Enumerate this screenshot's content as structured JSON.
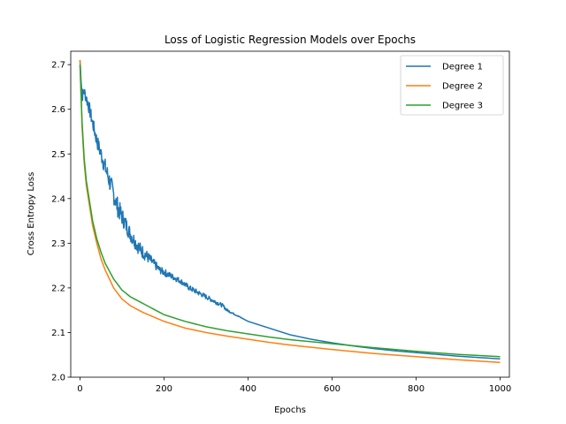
{
  "chart_data": {
    "type": "line",
    "title": "Loss of Logistic Regression Models over Epochs",
    "xlabel": "Epochs",
    "ylabel": "Cross Entropy Loss",
    "xlim": [
      -22,
      1022
    ],
    "ylim": [
      2.0,
      2.73
    ],
    "xticks": [
      0,
      200,
      400,
      600,
      800,
      1000
    ],
    "yticks": [
      2.0,
      2.1,
      2.2,
      2.3,
      2.4,
      2.5,
      2.6,
      2.7
    ],
    "ytick_labels": [
      "2.0",
      "2.1",
      "2.2",
      "2.3",
      "2.4",
      "2.5",
      "2.6",
      "2.7"
    ],
    "grid": false,
    "legend_position": "top-right",
    "series": [
      {
        "name": "Degree 1",
        "color": "#1f77b4",
        "x": [
          0,
          2,
          5,
          10,
          20,
          30,
          40,
          50,
          60,
          70,
          80,
          90,
          100,
          110,
          120,
          130,
          140,
          150,
          160,
          170,
          180,
          190,
          200,
          220,
          240,
          260,
          280,
          300,
          320,
          340,
          350,
          360,
          380,
          400,
          450,
          500,
          550,
          600,
          650,
          700,
          750,
          800,
          850,
          900,
          950,
          1000
        ],
        "values": [
          2.71,
          2.68,
          2.63,
          2.64,
          2.61,
          2.57,
          2.53,
          2.5,
          2.47,
          2.44,
          2.41,
          2.38,
          2.36,
          2.34,
          2.32,
          2.305,
          2.29,
          2.28,
          2.27,
          2.26,
          2.25,
          2.24,
          2.235,
          2.225,
          2.215,
          2.2,
          2.19,
          2.18,
          2.17,
          2.16,
          2.15,
          2.145,
          2.135,
          2.125,
          2.11,
          2.095,
          2.085,
          2.077,
          2.07,
          2.064,
          2.059,
          2.055,
          2.051,
          2.047,
          2.044,
          2.041
        ],
        "noise": [
          0,
          0.01,
          0.015,
          0.012,
          0.015,
          0.015,
          0.016,
          0.018,
          0.02,
          0.022,
          0.022,
          0.022,
          0.02,
          0.018,
          0.017,
          0.016,
          0.016,
          0.015,
          0.013,
          0.011,
          0.01,
          0.008,
          0.008,
          0.007,
          0.006,
          0.006,
          0.006,
          0.005,
          0.005,
          0.004,
          0.003,
          0.002,
          0.001,
          0,
          0,
          0,
          0,
          0,
          0,
          0,
          0,
          0,
          0,
          0,
          0,
          0
        ]
      },
      {
        "name": "Degree 2",
        "color": "#ff7f0e",
        "x": [
          0,
          5,
          10,
          15,
          20,
          30,
          40,
          50,
          60,
          80,
          100,
          120,
          150,
          200,
          250,
          300,
          350,
          400,
          450,
          500,
          600,
          700,
          800,
          900,
          1000
        ],
        "values": [
          2.71,
          2.56,
          2.48,
          2.43,
          2.4,
          2.34,
          2.3,
          2.265,
          2.24,
          2.2,
          2.175,
          2.16,
          2.145,
          2.125,
          2.11,
          2.1,
          2.092,
          2.085,
          2.078,
          2.072,
          2.062,
          2.053,
          2.046,
          2.039,
          2.033
        ]
      },
      {
        "name": "Degree 3",
        "color": "#2ca02c",
        "x": [
          0,
          5,
          10,
          15,
          20,
          30,
          40,
          50,
          60,
          80,
          100,
          120,
          150,
          200,
          250,
          300,
          350,
          400,
          450,
          500,
          600,
          700,
          800,
          900,
          1000
        ],
        "values": [
          2.7,
          2.57,
          2.49,
          2.44,
          2.41,
          2.35,
          2.31,
          2.28,
          2.255,
          2.22,
          2.195,
          2.18,
          2.165,
          2.14,
          2.125,
          2.113,
          2.104,
          2.097,
          2.09,
          2.084,
          2.075,
          2.066,
          2.058,
          2.051,
          2.046
        ]
      }
    ]
  }
}
